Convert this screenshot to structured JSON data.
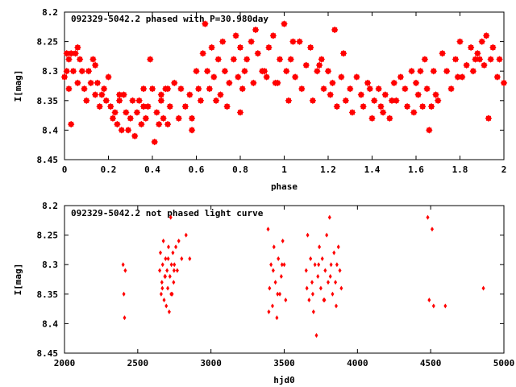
{
  "chart_data": [
    {
      "type": "scatter",
      "title": "092329-5042.2 phased with P=30.980day",
      "xlabel": "phase",
      "ylabel": "I[mag]",
      "xlim": [
        0,
        2
      ],
      "ylim": [
        8.45,
        8.2
      ],
      "y_inverted": true,
      "x_ticks": [
        "0",
        "0.2",
        "0.4",
        "0.6",
        "0.8",
        "1",
        "1.2",
        "1.4",
        "1.6",
        "1.8",
        "2"
      ],
      "y_ticks": [
        "8.2",
        "8.25",
        "8.3",
        "8.35",
        "8.4",
        "8.45"
      ],
      "grid": false,
      "marker_color": "#ff0000",
      "series": [
        {
          "x": [
            0.0,
            0.01,
            0.01,
            0.02,
            0.02,
            0.03,
            0.04,
            0.05,
            0.06,
            0.08,
            0.06,
            0.09,
            0.07,
            0.1,
            0.11,
            0.12,
            0.13,
            0.14,
            0.15,
            0.16,
            0.17,
            0.18,
            0.2,
            0.21,
            0.22,
            0.23,
            0.24,
            0.25,
            0.26,
            0.27,
            0.28,
            0.29,
            0.3,
            0.31,
            0.32,
            0.33,
            0.34,
            0.35,
            0.36,
            0.37,
            0.38,
            0.39,
            0.4,
            0.41,
            0.42,
            0.43,
            0.44,
            0.45,
            0.46,
            0.47,
            0.48,
            0.5,
            0.52,
            0.53,
            0.55,
            0.57,
            0.58,
            0.6,
            0.61,
            0.62,
            0.63,
            0.64,
            0.65,
            0.66,
            0.67,
            0.68,
            0.7,
            0.71,
            0.72,
            0.73,
            0.75,
            0.77,
            0.78,
            0.79,
            0.8,
            0.81,
            0.82,
            0.83,
            0.85,
            0.86,
            0.87,
            0.88,
            0.9,
            0.92,
            0.93,
            0.95,
            0.97,
            0.98,
            1.0,
            1.01,
            1.02,
            1.03,
            1.05,
            1.07,
            1.08,
            1.1,
            1.12,
            1.13,
            1.15,
            1.17,
            1.18,
            1.2,
            1.21,
            1.22,
            1.24,
            1.26,
            1.28,
            1.3,
            1.31,
            1.33,
            1.35,
            1.36,
            1.38,
            1.4,
            1.41,
            1.43,
            1.45,
            1.46,
            1.48,
            1.5,
            1.51,
            1.53,
            1.55,
            1.56,
            1.58,
            1.6,
            1.61,
            1.62,
            1.63,
            1.64,
            1.65,
            1.66,
            1.68,
            1.7,
            1.72,
            1.74,
            1.76,
            1.78,
            1.8,
            1.81,
            1.83,
            1.85,
            1.86,
            1.87,
            1.88,
            1.9,
            1.91,
            1.92,
            1.94,
            1.95,
            1.97,
            1.98,
            2.0,
            0.03,
            0.14,
            0.25,
            0.36,
            0.47,
            0.58,
            0.69,
            0.8,
            0.91,
            1.04,
            1.16,
            1.27,
            1.39,
            1.49,
            1.59,
            1.69,
            1.79,
            1.89,
            0.19,
            0.44,
            0.74,
            0.96,
            1.23,
            1.44,
            1.67,
            1.93
          ],
          "y": [
            8.31,
            8.27,
            8.3,
            8.28,
            8.33,
            8.39,
            8.3,
            8.27,
            8.32,
            8.3,
            8.26,
            8.33,
            8.28,
            8.35,
            8.3,
            8.32,
            8.28,
            8.34,
            8.32,
            8.36,
            8.34,
            8.33,
            8.31,
            8.36,
            8.38,
            8.37,
            8.39,
            8.35,
            8.4,
            8.34,
            8.37,
            8.4,
            8.38,
            8.35,
            8.41,
            8.37,
            8.35,
            8.39,
            8.33,
            8.38,
            8.36,
            8.28,
            8.33,
            8.42,
            8.37,
            8.39,
            8.35,
            8.38,
            8.33,
            8.39,
            8.36,
            8.32,
            8.38,
            8.33,
            8.36,
            8.34,
            8.38,
            8.3,
            8.33,
            8.35,
            8.27,
            8.22,
            8.3,
            8.33,
            8.26,
            8.31,
            8.28,
            8.34,
            8.25,
            8.3,
            8.32,
            8.28,
            8.24,
            8.31,
            8.26,
            8.33,
            8.3,
            8.28,
            8.25,
            8.32,
            8.23,
            8.27,
            8.3,
            8.31,
            8.26,
            8.24,
            8.32,
            8.28,
            8.22,
            8.3,
            8.35,
            8.28,
            8.31,
            8.25,
            8.33,
            8.29,
            8.26,
            8.35,
            8.3,
            8.28,
            8.33,
            8.3,
            8.34,
            8.32,
            8.36,
            8.31,
            8.35,
            8.33,
            8.37,
            8.31,
            8.34,
            8.36,
            8.32,
            8.38,
            8.35,
            8.33,
            8.37,
            8.34,
            8.38,
            8.32,
            8.35,
            8.31,
            8.33,
            8.36,
            8.3,
            8.32,
            8.34,
            8.3,
            8.36,
            8.28,
            8.33,
            8.4,
            8.3,
            8.35,
            8.27,
            8.3,
            8.33,
            8.28,
            8.25,
            8.31,
            8.29,
            8.26,
            8.3,
            8.28,
            8.27,
            8.25,
            8.29,
            8.24,
            8.28,
            8.26,
            8.31,
            8.28,
            8.32,
            8.27,
            8.29,
            8.34,
            8.36,
            8.33,
            8.4,
            8.35,
            8.37,
            8.3,
            8.25,
            8.29,
            8.27,
            8.33,
            8.35,
            8.37,
            8.34,
            8.31,
            8.28,
            8.35,
            8.34,
            8.36,
            8.32,
            8.23,
            8.36,
            8.36,
            8.38
          ],
          "marker": "filled-star"
        }
      ]
    },
    {
      "type": "scatter",
      "title": "092329-5042.2 not phased light curve",
      "xlabel": "hjd0",
      "ylabel": "I[mag]",
      "xlim": [
        2000,
        5000
      ],
      "ylim": [
        8.45,
        8.2
      ],
      "y_inverted": true,
      "x_ticks": [
        "2000",
        "2500",
        "3000",
        "3500",
        "4000",
        "4500",
        "5000"
      ],
      "y_ticks": [
        "8.2",
        "8.25",
        "8.3",
        "8.35",
        "8.4",
        "8.45"
      ],
      "grid": false,
      "marker_color": "#ff0000",
      "series": [
        {
          "x": [
            2400,
            2405,
            2410,
            2415,
            2650,
            2655,
            2660,
            2665,
            2670,
            2675,
            2680,
            2685,
            2690,
            2695,
            2700,
            2705,
            2710,
            2715,
            2720,
            2725,
            2730,
            2735,
            2740,
            2745,
            2750,
            2760,
            2770,
            2780,
            2800,
            2830,
            2855,
            3390,
            3400,
            3410,
            3420,
            3430,
            3440,
            3450,
            3460,
            3470,
            3480,
            3490,
            3500,
            3510,
            3650,
            3660,
            3670,
            3680,
            3690,
            3700,
            3710,
            3720,
            3730,
            3740,
            3750,
            3760,
            3770,
            3780,
            3790,
            3800,
            3810,
            3820,
            3830,
            3840,
            3850,
            3860,
            3870,
            3880,
            3890,
            4480,
            4490,
            4510,
            4520,
            4600,
            4860,
            2668,
            2688,
            2708,
            2728,
            2748,
            3395,
            3425,
            3455,
            3485,
            3655,
            3695,
            3735,
            3775,
            3815,
            3855
          ],
          "y": [
            8.3,
            8.35,
            8.39,
            8.31,
            8.31,
            8.28,
            8.35,
            8.33,
            8.3,
            8.26,
            8.36,
            8.32,
            8.29,
            8.37,
            8.31,
            8.34,
            8.27,
            8.38,
            8.32,
            8.22,
            8.3,
            8.35,
            8.28,
            8.33,
            8.3,
            8.27,
            8.31,
            8.26,
            8.29,
            8.25,
            8.29,
            8.24,
            8.34,
            8.3,
            8.37,
            8.27,
            8.33,
            8.39,
            8.29,
            8.35,
            8.32,
            8.26,
            8.3,
            8.36,
            8.31,
            8.25,
            8.36,
            8.29,
            8.33,
            8.38,
            8.3,
            8.42,
            8.32,
            8.27,
            8.34,
            8.29,
            8.36,
            8.31,
            8.25,
            8.33,
            8.22,
            8.3,
            8.35,
            8.28,
            8.33,
            8.3,
            8.27,
            8.31,
            8.34,
            8.22,
            8.36,
            8.24,
            8.37,
            8.37,
            8.34,
            8.34,
            8.32,
            8.29,
            8.35,
            8.31,
            8.38,
            8.31,
            8.35,
            8.3,
            8.34,
            8.35,
            8.3,
            8.36,
            8.32,
            8.37
          ],
          "marker": "filled-diamond"
        }
      ]
    }
  ]
}
